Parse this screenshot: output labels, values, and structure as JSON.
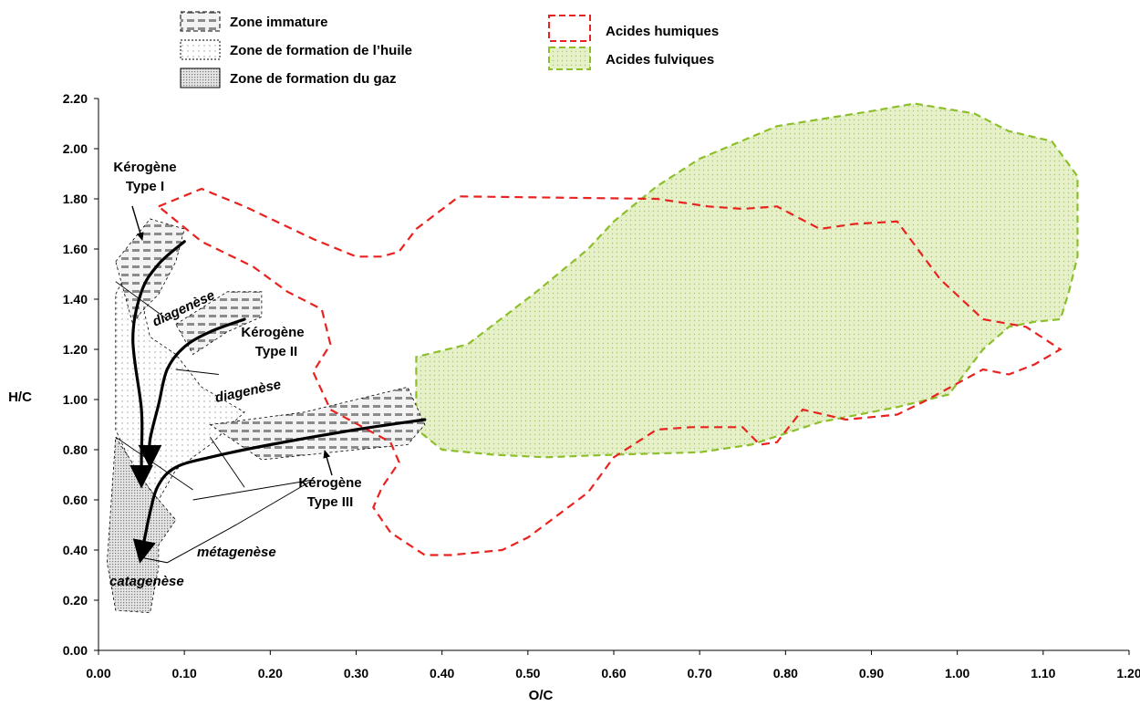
{
  "chart_data": {
    "type": "scatter",
    "title": "",
    "xlabel": "O/C",
    "ylabel": "H/C",
    "xlim": [
      0,
      1.2
    ],
    "ylim": [
      0,
      2.2
    ],
    "x_ticks": [
      "0.00",
      "0.10",
      "0.20",
      "0.30",
      "0.40",
      "0.50",
      "0.60",
      "0.70",
      "0.80",
      "0.90",
      "1.00",
      "1.10",
      "1.20"
    ],
    "y_ticks": [
      "0.00",
      "0.20",
      "0.40",
      "0.60",
      "0.80",
      "1.00",
      "1.20",
      "1.40",
      "1.60",
      "1.80",
      "2.00",
      "2.20"
    ],
    "grid": false,
    "colors": {
      "humic": "#e8231f",
      "fulvic": "#8cbf2a",
      "fulvic_fill": "#e6f0c9",
      "zone_gray": "#d9d9d9",
      "gas_gray": "#c0c0c0"
    },
    "legend": [
      {
        "label": "Zone immature",
        "style": "dash-hatch"
      },
      {
        "label": "Zone de formation de l’huile",
        "style": "dots"
      },
      {
        "label": "Zone de formation du gaz",
        "style": "dense-dots"
      },
      {
        "label": "Acides humiques",
        "style": "red-dashed"
      },
      {
        "label": "Acides fulviques",
        "style": "green-dashed-dotted"
      }
    ],
    "regions": {
      "acides_humiques": [
        [
          0.07,
          1.77
        ],
        [
          0.12,
          1.84
        ],
        [
          0.17,
          1.77
        ],
        [
          0.25,
          1.64
        ],
        [
          0.3,
          1.57
        ],
        [
          0.33,
          1.57
        ],
        [
          0.35,
          1.59
        ],
        [
          0.37,
          1.68
        ],
        [
          0.42,
          1.81
        ],
        [
          0.65,
          1.8
        ],
        [
          0.71,
          1.77
        ],
        [
          0.75,
          1.76
        ],
        [
          0.79,
          1.77
        ],
        [
          0.84,
          1.68
        ],
        [
          0.88,
          1.7
        ],
        [
          0.93,
          1.71
        ],
        [
          0.98,
          1.48
        ],
        [
          1.03,
          1.32
        ],
        [
          1.08,
          1.29
        ],
        [
          1.12,
          1.2
        ],
        [
          1.09,
          1.14
        ],
        [
          1.06,
          1.1
        ],
        [
          1.03,
          1.12
        ],
        [
          0.96,
          0.99
        ],
        [
          0.93,
          0.94
        ],
        [
          0.87,
          0.92
        ],
        [
          0.82,
          0.96
        ],
        [
          0.79,
          0.83
        ],
        [
          0.77,
          0.82
        ],
        [
          0.75,
          0.89
        ],
        [
          0.69,
          0.89
        ],
        [
          0.65,
          0.88
        ],
        [
          0.6,
          0.77
        ],
        [
          0.57,
          0.63
        ],
        [
          0.5,
          0.45
        ],
        [
          0.47,
          0.4
        ],
        [
          0.41,
          0.38
        ],
        [
          0.38,
          0.38
        ],
        [
          0.34,
          0.47
        ],
        [
          0.32,
          0.57
        ],
        [
          0.33,
          0.65
        ],
        [
          0.35,
          0.75
        ],
        [
          0.34,
          0.83
        ],
        [
          0.27,
          0.96
        ],
        [
          0.25,
          1.11
        ],
        [
          0.27,
          1.22
        ],
        [
          0.26,
          1.36
        ],
        [
          0.22,
          1.43
        ],
        [
          0.18,
          1.53
        ],
        [
          0.12,
          1.63
        ],
        [
          0.07,
          1.77
        ]
      ],
      "acides_fulviques": [
        [
          0.37,
          0.91
        ],
        [
          0.37,
          1.17
        ],
        [
          0.43,
          1.22
        ],
        [
          0.51,
          1.43
        ],
        [
          0.57,
          1.6
        ],
        [
          0.6,
          1.71
        ],
        [
          0.65,
          1.85
        ],
        [
          0.7,
          1.96
        ],
        [
          0.79,
          2.09
        ],
        [
          0.9,
          2.15
        ],
        [
          0.95,
          2.18
        ],
        [
          1.02,
          2.14
        ],
        [
          1.06,
          2.07
        ],
        [
          1.11,
          2.03
        ],
        [
          1.14,
          1.89
        ],
        [
          1.14,
          1.79
        ],
        [
          1.14,
          1.57
        ],
        [
          1.13,
          1.43
        ],
        [
          1.12,
          1.32
        ],
        [
          1.09,
          1.31
        ],
        [
          1.06,
          1.29
        ],
        [
          1.03,
          1.2
        ],
        [
          0.99,
          1.02
        ],
        [
          0.93,
          0.97
        ],
        [
          0.84,
          0.91
        ],
        [
          0.76,
          0.82
        ],
        [
          0.7,
          0.79
        ],
        [
          0.6,
          0.78
        ],
        [
          0.52,
          0.77
        ],
        [
          0.46,
          0.78
        ],
        [
          0.4,
          0.8
        ],
        [
          0.36,
          0.91
        ]
      ],
      "zone_immature_I": [
        [
          0.02,
          1.55
        ],
        [
          0.06,
          1.72
        ],
        [
          0.1,
          1.68
        ],
        [
          0.09,
          1.55
        ],
        [
          0.07,
          1.42
        ],
        [
          0.05,
          1.35
        ],
        [
          0.04,
          1.3
        ],
        [
          0.02,
          1.55
        ]
      ],
      "zone_immature_II": [
        [
          0.09,
          1.3
        ],
        [
          0.15,
          1.43
        ],
        [
          0.19,
          1.43
        ],
        [
          0.19,
          1.33
        ],
        [
          0.15,
          1.27
        ],
        [
          0.11,
          1.18
        ],
        [
          0.09,
          1.3
        ]
      ],
      "zone_immature_III": [
        [
          0.13,
          0.9
        ],
        [
          0.24,
          0.95
        ],
        [
          0.36,
          1.05
        ],
        [
          0.38,
          0.9
        ],
        [
          0.36,
          0.82
        ],
        [
          0.3,
          0.8
        ],
        [
          0.19,
          0.76
        ],
        [
          0.13,
          0.9
        ]
      ],
      "zone_huile": [
        [
          0.02,
          1.42
        ],
        [
          0.04,
          1.55
        ],
        [
          0.06,
          1.25
        ],
        [
          0.09,
          1.18
        ],
        [
          0.12,
          1.05
        ],
        [
          0.17,
          0.95
        ],
        [
          0.13,
          0.82
        ],
        [
          0.09,
          0.72
        ],
        [
          0.07,
          0.6
        ],
        [
          0.04,
          0.73
        ],
        [
          0.02,
          0.88
        ],
        [
          0.02,
          1.2
        ],
        [
          0.02,
          1.42
        ]
      ],
      "zone_gaz": [
        [
          0.02,
          0.85
        ],
        [
          0.06,
          0.64
        ],
        [
          0.09,
          0.52
        ],
        [
          0.07,
          0.42
        ],
        [
          0.07,
          0.33
        ],
        [
          0.06,
          0.15
        ],
        [
          0.02,
          0.16
        ],
        [
          0.01,
          0.35
        ],
        [
          0.02,
          0.85
        ]
      ]
    },
    "series": [
      {
        "name": "Kérogène Type I",
        "x": [
          0.1,
          0.07,
          0.05,
          0.04,
          0.05,
          0.05,
          0.05
        ],
        "y": [
          1.63,
          1.54,
          1.43,
          1.24,
          0.96,
          0.78,
          0.68
        ]
      },
      {
        "name": "Kérogène Type II",
        "x": [
          0.17,
          0.13,
          0.1,
          0.08,
          0.07,
          0.06,
          0.06
        ],
        "y": [
          1.32,
          1.27,
          1.21,
          1.12,
          0.98,
          0.84,
          0.76
        ]
      },
      {
        "name": "Kérogène Type III",
        "x": [
          0.38,
          0.3,
          0.2,
          0.13,
          0.09,
          0.07,
          0.06,
          0.05
        ],
        "y": [
          0.92,
          0.88,
          0.82,
          0.77,
          0.73,
          0.66,
          0.55,
          0.38
        ]
      }
    ],
    "annotations": [
      {
        "text": "Kérogène"
      },
      {
        "text": "Type I"
      },
      {
        "text": "Kérogène"
      },
      {
        "text": "Type II"
      },
      {
        "text": "Kérogène"
      },
      {
        "text": "Type III"
      },
      {
        "text": "diagenèse"
      },
      {
        "text": "diagenèse"
      },
      {
        "text": "métagenèse"
      },
      {
        "text": "catagenèse"
      }
    ]
  }
}
